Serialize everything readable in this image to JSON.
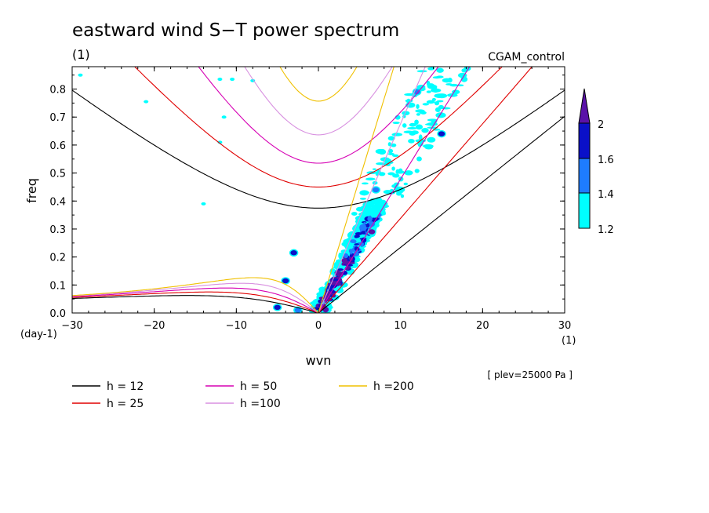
{
  "chart_data": {
    "type": "line",
    "title": "eastward wind S−T power spectrum",
    "subtitle_left": "(1)",
    "subtitle_right": "CGAM_control",
    "xlabel": "wvn",
    "ylabel": "freq",
    "x_unit": "(1)",
    "y_unit": "(day-1)",
    "annotation": "[ plev=25000 Pa ]",
    "xlim": [
      -30,
      30
    ],
    "ylim": [
      0,
      0.88
    ],
    "x_ticks": [
      "−30",
      "−20",
      "−10",
      "0",
      "10",
      "20",
      "30"
    ],
    "x_tick_values": [
      -30,
      -20,
      -10,
      0,
      10,
      20,
      30
    ],
    "y_ticks": [
      "0.0",
      "0.1",
      "0.2",
      "0.3",
      "0.4",
      "0.5",
      "0.6",
      "0.7",
      "0.8"
    ],
    "y_tick_values": [
      0,
      0.1,
      0.2,
      0.3,
      0.4,
      0.5,
      0.6,
      0.7,
      0.8
    ],
    "colorbar": {
      "levels": [
        "1.2",
        "1.4",
        "1.6",
        "2"
      ],
      "colors": [
        "#00ffff",
        "#1e7cff",
        "#0a10c8",
        "#5a12a8"
      ]
    },
    "series": [
      {
        "name": "h = 12",
        "color": "#000000"
      },
      {
        "name": "h = 25",
        "color": "#e00000"
      },
      {
        "name": "h = 50",
        "color": "#d600b4"
      },
      {
        "name": "h =100",
        "color": "#d890e0"
      },
      {
        "name": "h =200",
        "color": "#f0c000"
      }
    ]
  }
}
